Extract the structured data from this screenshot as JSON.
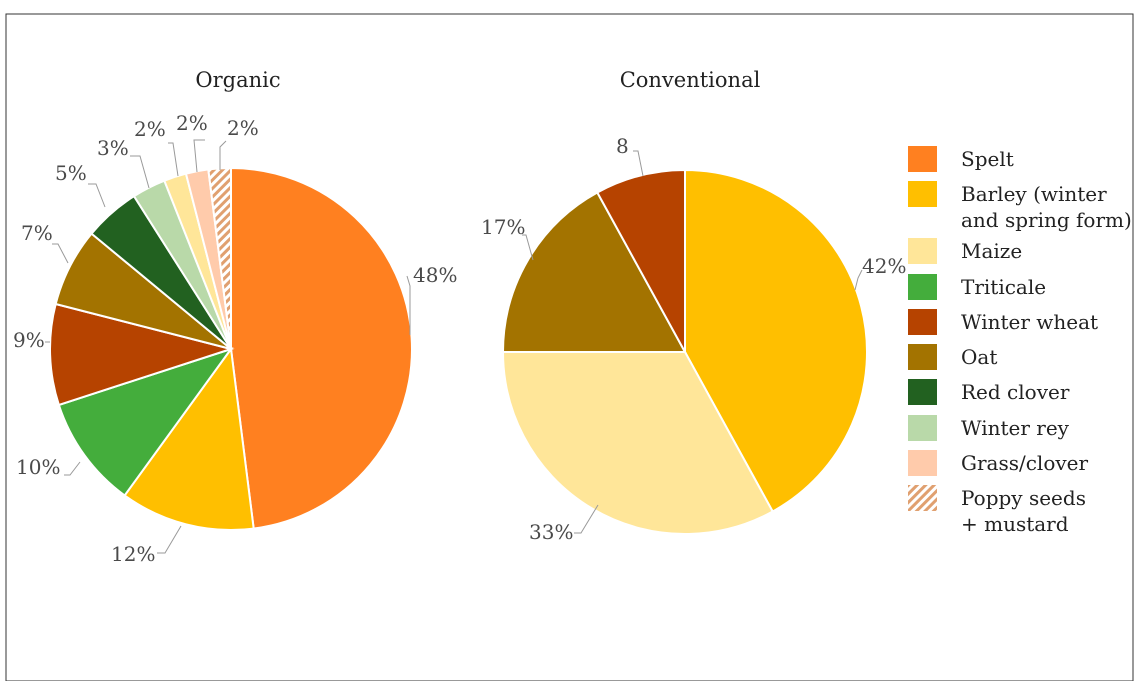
{
  "colors": {
    "Spelt": "#ff8020",
    "Barley (winter and spring form)": "#ffbf00",
    "Maize": "#ffe699",
    "Triticale": "#44ad3c",
    "Winter wheat": "#b64300",
    "Oat": "#a37300",
    "Red clover": "#226120",
    "Winter rey": "#b9d9a9",
    "Grass/clover": "#ffcbab",
    "Poppy seeds + mustard": "#e0a070"
  },
  "chart_data": [
    {
      "type": "pie",
      "title": "Organic",
      "slices": [
        {
          "name": "Spelt",
          "value": 48,
          "label": "48%"
        },
        {
          "name": "Barley (winter and spring form)",
          "value": 12,
          "label": "12%"
        },
        {
          "name": "Triticale",
          "value": 10,
          "label": "10%"
        },
        {
          "name": "Winter wheat",
          "value": 9,
          "label": "9%"
        },
        {
          "name": "Oat",
          "value": 7,
          "label": "7%"
        },
        {
          "name": "Red clover",
          "value": 5,
          "label": "5%"
        },
        {
          "name": "Winter rey",
          "value": 3,
          "label": "3%"
        },
        {
          "name": "Maize",
          "value": 2,
          "label": "2%"
        },
        {
          "name": "Grass/clover",
          "value": 2,
          "label": "2%"
        },
        {
          "name": "Poppy seeds + mustard",
          "value": 2,
          "label": "2%",
          "pattern": "hatched"
        }
      ]
    },
    {
      "type": "pie",
      "title": "Conventional",
      "slices": [
        {
          "name": "Barley (winter and spring form)",
          "value": 42,
          "label": "42%"
        },
        {
          "name": "Maize",
          "value": 33,
          "label": "33%"
        },
        {
          "name": "Oat",
          "value": 17,
          "label": "17%"
        },
        {
          "name": "Winter wheat",
          "value": 8,
          "label": "8"
        }
      ]
    }
  ],
  "legend": {
    "placement": "right",
    "items": [
      {
        "name": "Spelt",
        "lines": [
          "Spelt"
        ]
      },
      {
        "name": "Barley (winter and spring form)",
        "lines": [
          "Barley (winter",
          "and spring form)"
        ]
      },
      {
        "name": "Maize",
        "lines": [
          "Maize"
        ]
      },
      {
        "name": "Triticale",
        "lines": [
          "Triticale"
        ]
      },
      {
        "name": "Winter wheat",
        "lines": [
          "Winter wheat"
        ]
      },
      {
        "name": "Oat",
        "lines": [
          "Oat"
        ]
      },
      {
        "name": "Red clover",
        "lines": [
          "Red clover"
        ]
      },
      {
        "name": "Winter rey",
        "lines": [
          "Winter rey"
        ]
      },
      {
        "name": "Grass/clover",
        "lines": [
          "Grass/clover"
        ]
      },
      {
        "name": "Poppy seeds + mustard",
        "lines": [
          "Poppy seeds",
          "+ mustard"
        ],
        "pattern": "hatched"
      }
    ]
  }
}
